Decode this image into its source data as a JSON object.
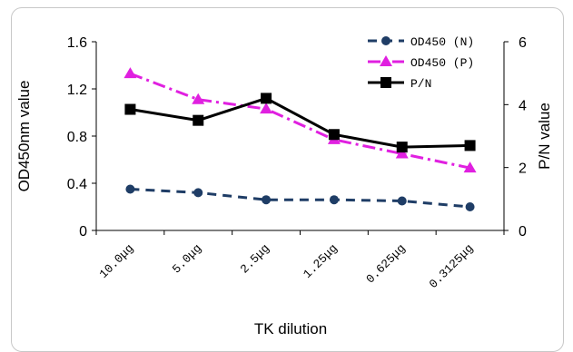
{
  "chart_data": {
    "type": "line",
    "categories": [
      "10.0μg",
      "5.0μg",
      "2.5μg",
      "1.25μg",
      "0.625μg",
      "0.3125μg"
    ],
    "xlabel": "TK dilution",
    "ylabel": "OD450nm value",
    "y2label": "P/N value",
    "ylim": [
      0,
      1.6
    ],
    "y_ticks": [
      "0",
      "0.4",
      "0.8",
      "1.2",
      "1.6"
    ],
    "y2lim": [
      0,
      6
    ],
    "y2_ticks": [
      "0",
      "2",
      "4",
      "6"
    ],
    "grid": false,
    "legend_position": "top-right",
    "series": [
      {
        "name": "OD450 (N)",
        "axis": "left",
        "values": [
          0.35,
          0.32,
          0.26,
          0.26,
          0.25,
          0.2
        ],
        "color": "#1f3d66",
        "marker": "circle",
        "dash": "dash"
      },
      {
        "name": "OD450 (P)",
        "axis": "left",
        "values": [
          1.33,
          1.11,
          1.03,
          0.77,
          0.65,
          0.53
        ],
        "color": "#e020e0",
        "marker": "triangle",
        "dash": "dashdot"
      },
      {
        "name": "P/N",
        "axis": "right",
        "values": [
          3.85,
          3.5,
          4.2,
          3.05,
          2.65,
          2.7
        ],
        "color": "#000000",
        "marker": "square",
        "dash": "solid"
      }
    ]
  }
}
